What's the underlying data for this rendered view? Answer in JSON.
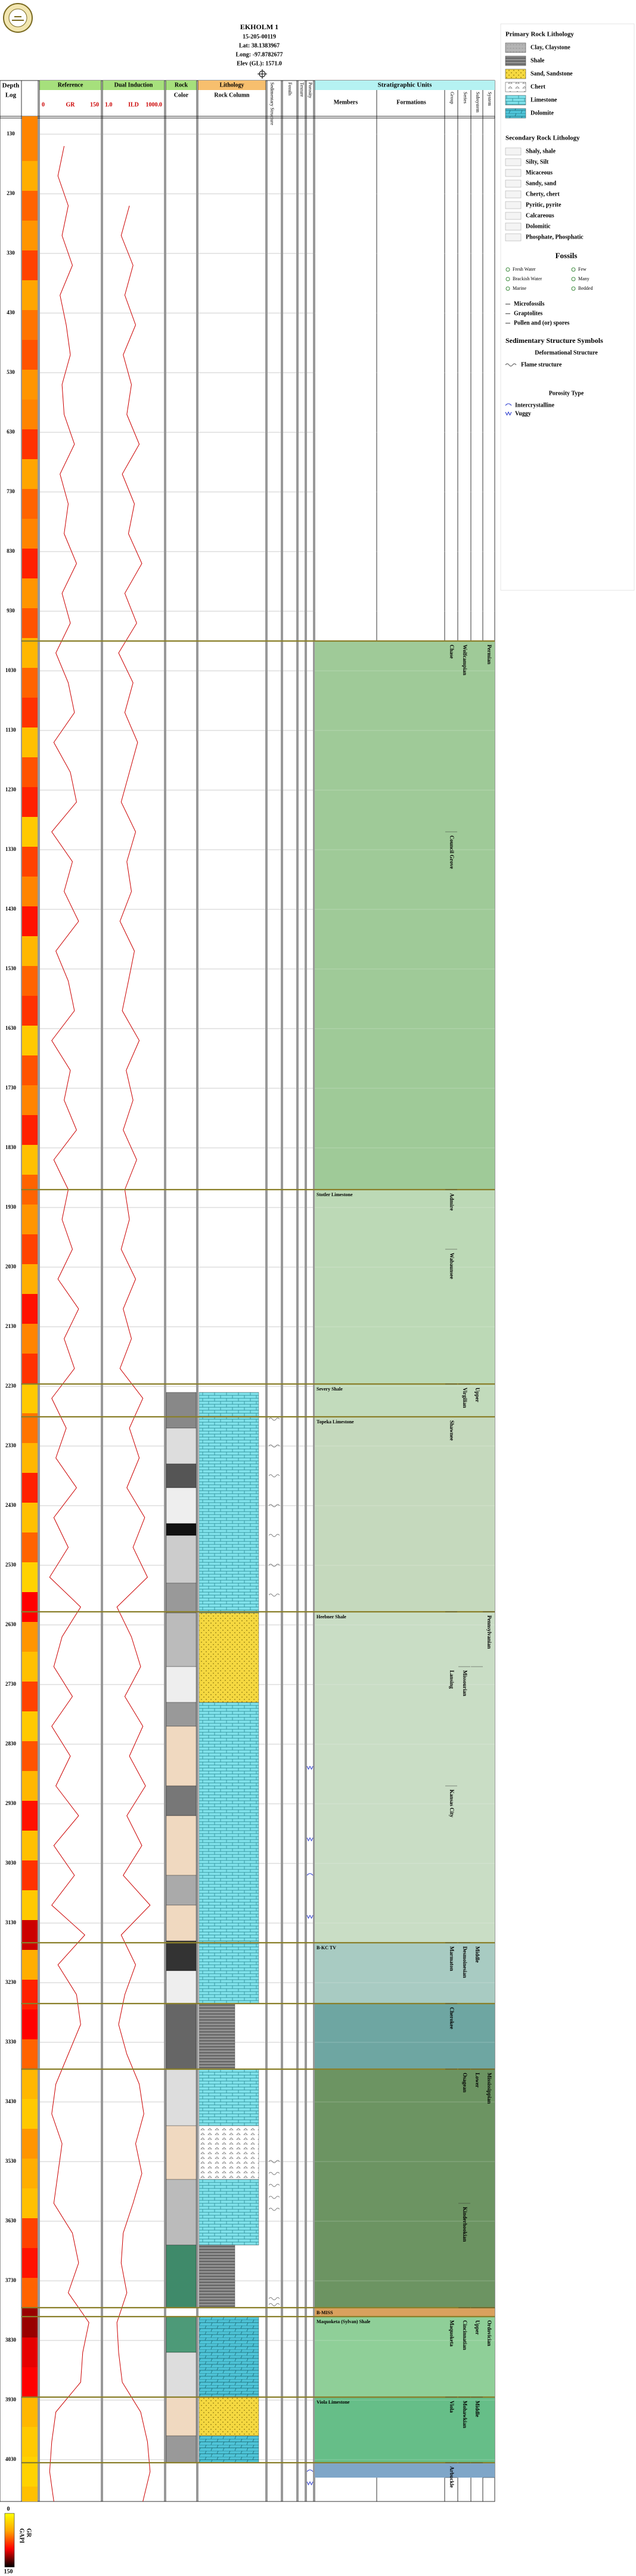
{
  "chart_data": {
    "type": "well_log",
    "well": {
      "name": "EKHOLM 1",
      "api": "15-205-00119",
      "lat": "Lat: 38.1383967",
      "long": "Long: -97.8782677",
      "elev": "Elev (GL): 1571.0"
    },
    "headers": {
      "depth": "Depth",
      "log": "Log",
      "reference": "Reference",
      "dual": "Dual Induction",
      "rock": "Rock",
      "color": "Color",
      "lithology": "Lithology",
      "rock_column": "Rock Column",
      "sed": "Sedimentary Structure",
      "fossils": "Fossils",
      "texture": "Texture",
      "porosity": "Porosity",
      "strat": "Stratigraphic Units",
      "members": "Members",
      "formations": "Formations",
      "group": "Group",
      "series": "Series",
      "subsystem": "Subsystem",
      "system": "System"
    },
    "ylim": [
      100,
      4100
    ],
    "yticks": [
      130,
      230,
      330,
      430,
      530,
      630,
      730,
      830,
      930,
      1030,
      1130,
      1230,
      1330,
      1430,
      1530,
      1630,
      1730,
      1830,
      1930,
      2030,
      2130,
      2230,
      2330,
      2430,
      2530,
      2630,
      2730,
      2830,
      2930,
      3030,
      3130,
      3230,
      3330,
      3430,
      3530,
      3630,
      3730,
      3830,
      3930,
      4030
    ],
    "grid": true,
    "depths": [
      150,
      200,
      250,
      300,
      350,
      400,
      450,
      500,
      550,
      600,
      650,
      700,
      750,
      800,
      850,
      900,
      950,
      1000,
      1050,
      1100,
      1150,
      1200,
      1250,
      1300,
      1350,
      1400,
      1450,
      1500,
      1550,
      1600,
      1650,
      1700,
      1750,
      1800,
      1850,
      1900,
      1950,
      2000,
      2050,
      2100,
      2150,
      2200,
      2250,
      2300,
      2350,
      2400,
      2450,
      2500,
      2550,
      2600,
      2650,
      2700,
      2750,
      2800,
      2850,
      2900,
      2950,
      3000,
      3050,
      3100,
      3150,
      3200,
      3250,
      3300,
      3350,
      3400,
      3450,
      3500,
      3550,
      3600,
      3650,
      3700,
      3750,
      3800,
      3850,
      3900,
      3950,
      4000,
      4050,
      4100
    ],
    "gr": {
      "name": "GR",
      "color": "#cc0000",
      "xlim": [
        0,
        150
      ],
      "values": [
        60,
        45,
        70,
        55,
        80,
        50,
        65,
        75,
        55,
        60,
        85,
        50,
        70,
        60,
        90,
        55,
        75,
        40,
        70,
        85,
        35,
        75,
        90,
        30,
        80,
        60,
        95,
        40,
        70,
        85,
        30,
        75,
        60,
        90,
        35,
        70,
        55,
        80,
        45,
        95,
        60,
        85,
        30,
        65,
        40,
        90,
        35,
        70,
        25,
        100,
        55,
        35,
        80,
        30,
        75,
        40,
        95,
        35,
        85,
        30,
        110,
        45,
        90,
        100,
        70,
        40,
        30,
        55,
        45,
        35,
        80,
        95,
        70,
        120,
        105,
        100,
        40,
        30,
        25,
        35
      ]
    },
    "ild": {
      "name": "ILD",
      "color": "#cc0000",
      "xlim": [
        1.0,
        1000.0
      ],
      "xlim_labels": [
        "1.0",
        "1000.0"
      ],
      "log": true,
      "values": [
        null,
        null,
        20,
        8,
        30,
        12,
        40,
        10,
        25,
        15,
        60,
        9,
        35,
        18,
        80,
        12,
        45,
        6,
        30,
        12,
        50,
        20,
        8,
        40,
        15,
        25,
        7,
        35,
        18,
        9,
        60,
        14,
        30,
        10,
        45,
        12,
        20,
        8,
        40,
        10,
        25,
        7,
        90,
        20,
        60,
        15,
        110,
        30,
        150,
        5,
        25,
        70,
        12,
        90,
        20,
        120,
        15,
        80,
        10,
        200,
        8,
        40,
        12,
        6,
        15,
        60,
        100,
        40,
        80,
        30,
        10,
        8,
        15,
        5,
        6,
        9,
        70,
        150,
        200,
        90
      ]
    },
    "gr_colors": [
      "#ffff00",
      "#ffa500",
      "#ff0000",
      "#000000"
    ],
    "scale_label": "GAPI",
    "units": [
      {
        "top": 980,
        "bottom": 1900,
        "color": "#9fca98"
      },
      {
        "top": 1900,
        "bottom": 2226,
        "color": "#bcd9b6",
        "member": "Stotler Limestone"
      },
      {
        "top": 2226,
        "bottom": 2281,
        "color": "#c2dbbc",
        "member": "Severy Shale"
      },
      {
        "top": 2281,
        "bottom": 2608,
        "color": "#c5d9bd",
        "member": "Topeka Limestone"
      },
      {
        "top": 2608,
        "bottom": 3163,
        "color": "#c9ddc5",
        "member": "Heebner Shale"
      },
      {
        "top": 3163,
        "bottom": 3265,
        "color": "#a8cbc2",
        "member": "B-KC TV"
      },
      {
        "top": 3265,
        "bottom": 3375,
        "color": "#6ea6a2"
      },
      {
        "top": 3375,
        "bottom": 3775,
        "color": "#6c9462"
      },
      {
        "top": 3775,
        "bottom": 3790,
        "color": "#d9a15e",
        "member": "B-MISS"
      },
      {
        "top": 3790,
        "bottom": 3925,
        "color": "#8fcf98",
        "member": "Maquoketa (Sylvan) Shale"
      },
      {
        "top": 3925,
        "bottom": 4035,
        "color": "#66be88",
        "member": "Viola Limestone"
      },
      {
        "top": 4035,
        "bottom": 4060,
        "color": "#7fa6c8"
      }
    ],
    "groups": [
      {
        "name": "Chase",
        "top": 980,
        "bottom": 1300
      },
      {
        "name": "Council Grove",
        "top": 1300,
        "bottom": 1900
      },
      {
        "name": "Admire",
        "top": 1900,
        "bottom": 2000
      },
      {
        "name": "Wabaunsee",
        "top": 2000,
        "bottom": 2226
      },
      {
        "name": "Shawnee",
        "top": 2281,
        "bottom": 2608
      },
      {
        "name": "Lansing",
        "top": 2700,
        "bottom": 2900
      },
      {
        "name": "Kansas City",
        "top": 2900,
        "bottom": 3163
      },
      {
        "name": "Marmaton",
        "top": 3163,
        "bottom": 3265
      },
      {
        "name": "Cherokee",
        "top": 3265,
        "bottom": 3375
      },
      {
        "name": "Maquoketa",
        "top": 3790,
        "bottom": 3925
      },
      {
        "name": "Viola",
        "top": 3925,
        "bottom": 4035
      },
      {
        "name": "Arbuckle",
        "top": 4035,
        "bottom": 4060
      }
    ],
    "series": [
      {
        "name": "Wolfcampian",
        "top": 980,
        "bottom": 2226
      },
      {
        "name": "Virgilian",
        "top": 2226,
        "bottom": 2700
      },
      {
        "name": "Missourian",
        "top": 2700,
        "bottom": 3163
      },
      {
        "name": "Desmoinesian",
        "top": 3163,
        "bottom": 3375
      },
      {
        "name": "Osagean",
        "top": 3375,
        "bottom": 3600
      },
      {
        "name": "Kinderhookian",
        "top": 3600,
        "bottom": 3775
      },
      {
        "name": "Cincinnatian",
        "top": 3790,
        "bottom": 3925
      },
      {
        "name": "Mohawkian",
        "top": 3925,
        "bottom": 4035
      }
    ],
    "subsystems": [
      {
        "name": "Upper",
        "top": 2226,
        "bottom": 2700
      },
      {
        "name": "Middle",
        "top": 3163,
        "bottom": 3375
      },
      {
        "name": "Lower",
        "top": 3375,
        "bottom": 3775
      },
      {
        "name": "Upper",
        "top": 3790,
        "bottom": 3925
      },
      {
        "name": "Middle",
        "top": 3925,
        "bottom": 4035
      }
    ],
    "systems": [
      {
        "name": "Permian",
        "top": 980,
        "bottom": 2608
      },
      {
        "name": "Pennsylvanian",
        "top": 2608,
        "bottom": 3375
      },
      {
        "name": "Mississippian",
        "top": 3375,
        "bottom": 3775
      },
      {
        "name": "Ordovician",
        "top": 3790,
        "bottom": 4060
      }
    ],
    "lithology": [
      {
        "top": 2240,
        "bottom": 2610,
        "rock": 4
      },
      {
        "top": 2610,
        "bottom": 2760,
        "rock": 2
      },
      {
        "top": 2760,
        "bottom": 3265,
        "rock": 4
      },
      {
        "top": 3265,
        "bottom": 3375,
        "rock": 1
      },
      {
        "top": 3375,
        "bottom": 3470,
        "rock": 4
      },
      {
        "top": 3470,
        "bottom": 3560,
        "rock": 3
      },
      {
        "top": 3560,
        "bottom": 3670,
        "rock": 4
      },
      {
        "top": 3670,
        "bottom": 3775,
        "rock": 1
      },
      {
        "top": 3790,
        "bottom": 3925,
        "rock": 5
      },
      {
        "top": 3925,
        "bottom": 3990,
        "rock": 2
      },
      {
        "top": 3990,
        "bottom": 4035,
        "rock": 5
      }
    ],
    "rock_colors": [
      {
        "top": 2240,
        "bottom": 2300,
        "color": "#888888"
      },
      {
        "top": 2300,
        "bottom": 2360,
        "color": "#dddddd"
      },
      {
        "top": 2360,
        "bottom": 2400,
        "color": "#555555"
      },
      {
        "top": 2400,
        "bottom": 2460,
        "color": "#eeeeee"
      },
      {
        "top": 2460,
        "bottom": 2480,
        "color": "#111111"
      },
      {
        "top": 2480,
        "bottom": 2560,
        "color": "#cccccc"
      },
      {
        "top": 2560,
        "bottom": 2610,
        "color": "#999999"
      },
      {
        "top": 2610,
        "bottom": 2700,
        "color": "#bbbbbb"
      },
      {
        "top": 2700,
        "bottom": 2760,
        "color": "#eeeeee"
      },
      {
        "top": 2760,
        "bottom": 2800,
        "color": "#999999"
      },
      {
        "top": 2800,
        "bottom": 2900,
        "color": "#f0d9c0"
      },
      {
        "top": 2900,
        "bottom": 2950,
        "color": "#777777"
      },
      {
        "top": 2950,
        "bottom": 3050,
        "color": "#f0d9c0"
      },
      {
        "top": 3050,
        "bottom": 3100,
        "color": "#aaaaaa"
      },
      {
        "top": 3100,
        "bottom": 3160,
        "color": "#f0d9c0"
      },
      {
        "top": 3160,
        "bottom": 3210,
        "color": "#333333"
      },
      {
        "top": 3210,
        "bottom": 3265,
        "color": "#eeeeee"
      },
      {
        "top": 3265,
        "bottom": 3375,
        "color": "#666666"
      },
      {
        "top": 3375,
        "bottom": 3470,
        "color": "#dddddd"
      },
      {
        "top": 3470,
        "bottom": 3560,
        "color": "#f0d9c0"
      },
      {
        "top": 3560,
        "bottom": 3670,
        "color": "#bbbbbb"
      },
      {
        "top": 3670,
        "bottom": 3775,
        "color": "#3f8a6a"
      },
      {
        "top": 3790,
        "bottom": 3850,
        "color": "#4d9a78"
      },
      {
        "top": 3850,
        "bottom": 3925,
        "color": "#dddddd"
      },
      {
        "top": 3925,
        "bottom": 3990,
        "color": "#f0d9c0"
      },
      {
        "top": 3990,
        "bottom": 4035,
        "color": "#999999"
      }
    ],
    "structures": [
      2285,
      2330,
      2380,
      2430,
      2480,
      2530,
      2580,
      3530,
      3550,
      3570,
      3590,
      3610,
      3760,
      3770
    ],
    "porosity": [
      {
        "depth": 2870,
        "type": 1
      },
      {
        "depth": 2990,
        "type": 1
      },
      {
        "depth": 3050,
        "type": 0
      },
      {
        "depth": 3120,
        "type": 1
      },
      {
        "depth": 4050,
        "type": 0
      },
      {
        "depth": 4070,
        "type": 1
      }
    ],
    "legend": {
      "primary_title": "Primary Rock Lithology",
      "primary": [
        {
          "label": "Clay, Claystone",
          "color": "#b5b5b5"
        },
        {
          "label": "Shale",
          "color": "#8c8c8c"
        },
        {
          "label": "Sand, Sandstone",
          "color": "#f5d840"
        },
        {
          "label": "Chert",
          "color": "#ffffff"
        },
        {
          "label": "Limestone",
          "color": "#82e3ec"
        },
        {
          "label": "Dolomite",
          "color": "#4fc4d8"
        }
      ],
      "secondary_title": "Secondary Rock Lithology",
      "secondary": [
        "Shaly, shale",
        "Silty, Silt",
        "Micaceous",
        "Sandy, sand",
        "Cherty, chert",
        "Pyritic, pyrite",
        "Calcareous",
        "Dolomitic",
        "Phosphate, Phosphatic"
      ],
      "fossils_title": "Fossils",
      "fossils": [
        "Fresh Water",
        "Brackish Water",
        "Marine",
        "Few",
        "Many",
        "Bedded"
      ],
      "fossils_extra": [
        "Microfossils",
        "Graptolites",
        "Pollen and (or) spores"
      ],
      "sed_title": "Sedimentary Structure Symbols",
      "deform_title": "Deformational Structure",
      "flame": "Flame structure",
      "porosity_title": "Porosity Type",
      "porosity": [
        "Intercrystalline",
        "Vuggy"
      ]
    }
  }
}
